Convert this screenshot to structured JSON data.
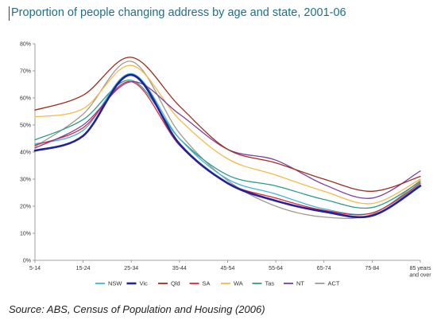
{
  "title": "Proportion of people changing address by age and state, 2001-06",
  "source": "Source: ABS, Census of Population and Housing (2006)",
  "chart_data": {
    "type": "line",
    "title": "Proportion of people changing address by age and state, 2001-06",
    "categories": [
      "5-14",
      "15-24",
      "25-34",
      "35-44",
      "45-54",
      "55-64",
      "65-74",
      "75-84",
      "85 years and over"
    ],
    "category_lines": [
      [
        "5-14"
      ],
      [
        "15-24"
      ],
      [
        "25-34"
      ],
      [
        "35-44"
      ],
      [
        "45-54"
      ],
      [
        "55-64"
      ],
      [
        "65-74"
      ],
      [
        "75-84"
      ],
      [
        "85 years",
        "and over"
      ]
    ],
    "y_ticks": [
      "0%",
      "10%",
      "20%",
      "30%",
      "40%",
      "50%",
      "60%",
      "70%",
      "80%"
    ],
    "ylim": [
      0,
      80
    ],
    "grid": false,
    "legend_position": "bottom",
    "series": [
      {
        "name": "NSW",
        "color": "#3fb7dd",
        "width": 1.3,
        "values": [
          43,
          48,
          69,
          45,
          30,
          24.5,
          19,
          17.5,
          28
        ]
      },
      {
        "name": "Vic",
        "color": "#22229a",
        "width": 2.6,
        "values": [
          40.5,
          46,
          68.5,
          43,
          28.5,
          22,
          18,
          16.5,
          27.5
        ]
      },
      {
        "name": "Qld",
        "color": "#9c2f1f",
        "width": 1.3,
        "values": [
          55.5,
          61,
          75,
          57,
          41,
          36,
          30,
          25.5,
          31
        ]
      },
      {
        "name": "SA",
        "color": "#e0283a",
        "width": 1.3,
        "values": [
          42.5,
          49,
          66,
          42.5,
          28.5,
          23,
          18.5,
          17.5,
          28.5
        ]
      },
      {
        "name": "WA",
        "color": "#f5b947",
        "width": 1.3,
        "values": [
          53,
          56,
          72,
          52,
          37.5,
          31.5,
          25.5,
          21,
          30
        ]
      },
      {
        "name": "Tas",
        "color": "#2c9d8a",
        "width": 1.3,
        "values": [
          44.5,
          52,
          66.5,
          45,
          31.5,
          27.5,
          22.5,
          19.5,
          29
        ]
      },
      {
        "name": "NT",
        "color": "#7b3fa0",
        "width": 1.3,
        "values": [
          41.5,
          50,
          66,
          54,
          41,
          37,
          28,
          23,
          33
        ]
      },
      {
        "name": "ACT",
        "color": "#a39a90",
        "width": 1.3,
        "values": [
          42,
          54,
          73.5,
          47,
          29.5,
          20,
          16,
          17,
          29.5
        ]
      }
    ]
  }
}
